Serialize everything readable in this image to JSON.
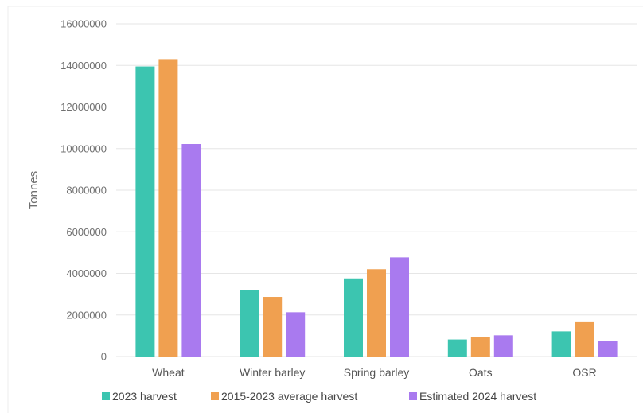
{
  "chart_data": {
    "type": "bar",
    "title": "",
    "xlabel": "",
    "ylabel": "Tonnes",
    "ylim": [
      0,
      16000000
    ],
    "yticks": [
      "0",
      "2000000",
      "4000000",
      "6000000",
      "8000000",
      "10000000",
      "12000000",
      "14000000",
      "16000000"
    ],
    "categories": [
      "Wheat",
      "Winter barley",
      "Spring barley",
      "Oats",
      "OSR"
    ],
    "series": [
      {
        "name": "2023 harvest",
        "color": "#3cc5b0",
        "values": [
          13950000,
          3190000,
          3760000,
          820000,
          1210000
        ]
      },
      {
        "name": "2015-2023 average harvest",
        "color": "#f0a050",
        "values": [
          14300000,
          2870000,
          4200000,
          950000,
          1650000
        ]
      },
      {
        "name": "Estimated 2024 harvest",
        "color": "#a97aef",
        "values": [
          10220000,
          2130000,
          4770000,
          1020000,
          760000
        ]
      }
    ],
    "grid": true,
    "legend": "bottom"
  }
}
